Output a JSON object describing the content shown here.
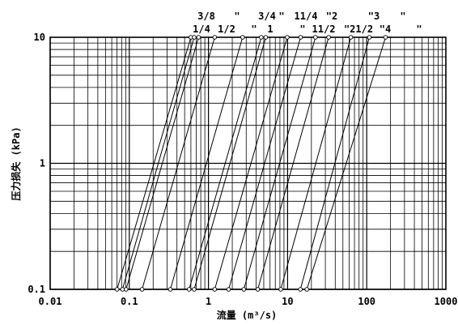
{
  "chart_data": {
    "type": "line",
    "xscale": "log",
    "yscale": "log",
    "xlim": [
      0.01,
      1000
    ],
    "ylim": [
      0.1,
      10
    ],
    "xlabel": "流量 (m³/s)",
    "ylabel": "压力损失 (kPa)",
    "xticks": [
      "0.01",
      "0.1",
      "1",
      "10",
      "100",
      "1000"
    ],
    "yticks": [
      "0.1",
      "1",
      "10"
    ],
    "grid": true,
    "size_labels_top": [
      "3/8",
      "\"",
      "3/4",
      "\"",
      "11/4",
      "\"2",
      "\"3",
      "\""
    ],
    "size_labels_bottom": [
      "1/4",
      "1/2",
      "\"",
      "1",
      "\"",
      "11/2",
      "\"21/2",
      "\"4",
      "\""
    ],
    "series": [
      {
        "points": [
          [
            0.07,
            0.1
          ],
          [
            0.6,
            10
          ]
        ]
      },
      {
        "points": [
          [
            0.082,
            0.1
          ],
          [
            0.66,
            10
          ]
        ]
      },
      {
        "points": [
          [
            0.091,
            0.1
          ],
          [
            0.75,
            10
          ]
        ]
      },
      {
        "points": [
          [
            0.145,
            0.1
          ],
          [
            1.2,
            10
          ]
        ]
      },
      {
        "points": [
          [
            0.33,
            0.1
          ],
          [
            2.7,
            10
          ]
        ]
      },
      {
        "points": [
          [
            0.57,
            0.1
          ],
          [
            4.65,
            10
          ]
        ]
      },
      {
        "points": [
          [
            0.66,
            0.1
          ],
          [
            5.3,
            10
          ]
        ]
      },
      {
        "points": [
          [
            1.2,
            0.1
          ],
          [
            9.9,
            10
          ]
        ]
      },
      {
        "points": [
          [
            1.8,
            0.1
          ],
          [
            14.6,
            10
          ]
        ]
      },
      {
        "points": [
          [
            2.8,
            0.1
          ],
          [
            22.5,
            10
          ]
        ]
      },
      {
        "points": [
          [
            4.2,
            0.1
          ],
          [
            33.0,
            10
          ]
        ]
      },
      {
        "points": [
          [
            8.2,
            0.1
          ],
          [
            63.0,
            10
          ]
        ]
      },
      {
        "points": [
          [
            14.5,
            0.1
          ],
          [
            108.0,
            10
          ]
        ]
      },
      {
        "points": [
          [
            17.5,
            0.1
          ],
          [
            173.0,
            10
          ]
        ]
      }
    ]
  }
}
